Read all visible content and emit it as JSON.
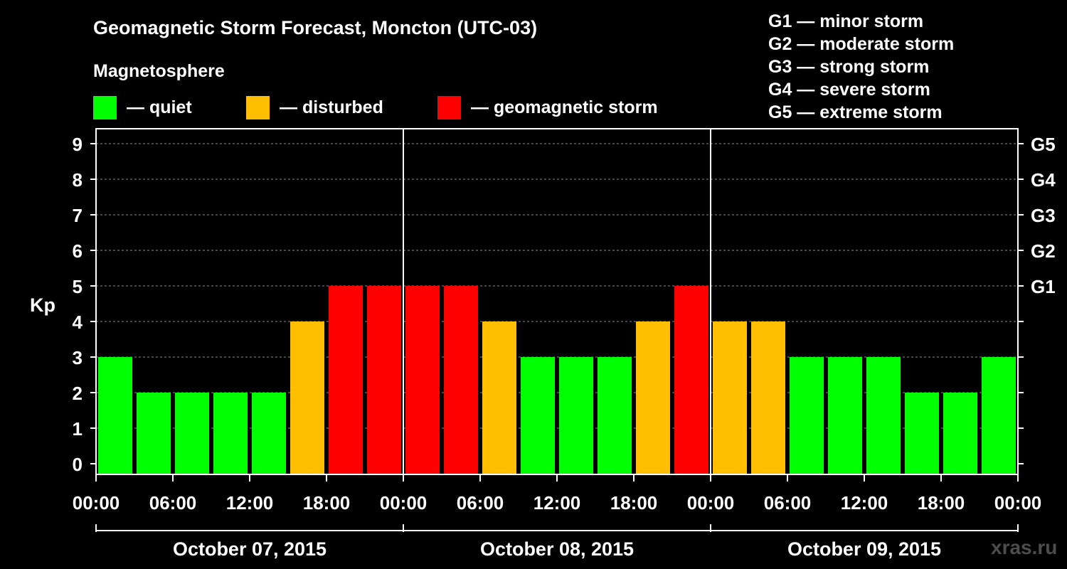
{
  "title": "Geomagnetic Storm Forecast, Moncton (UTC-03)",
  "legend": {
    "heading": "Magnetosphere",
    "items": [
      {
        "label": "— quiet",
        "color": "#00ff00"
      },
      {
        "label": "— disturbed",
        "color": "#ffbf00"
      },
      {
        "label": "— geomagnetic storm",
        "color": "#ff0000"
      }
    ]
  },
  "storm_levels": [
    "G1 — minor storm",
    "G2 — moderate storm",
    "G3 — strong storm",
    "G4 — severe storm",
    "G5 — extreme storm"
  ],
  "watermark": "xras.ru",
  "chart_data": {
    "type": "bar",
    "ylabel": "Kp",
    "ylim": [
      0,
      9
    ],
    "y_ticks": [
      0,
      1,
      2,
      3,
      4,
      5,
      6,
      7,
      8,
      9
    ],
    "right_axis_labels": [
      {
        "kp": 5,
        "label": "G1"
      },
      {
        "kp": 6,
        "label": "G2"
      },
      {
        "kp": 7,
        "label": "G3"
      },
      {
        "kp": 8,
        "label": "G4"
      },
      {
        "kp": 9,
        "label": "G5"
      }
    ],
    "x_tick_labels": [
      "00:00",
      "06:00",
      "12:00",
      "18:00",
      "00:00",
      "06:00",
      "12:00",
      "18:00",
      "00:00",
      "06:00",
      "12:00",
      "18:00",
      "00:00"
    ],
    "days": [
      "October 07, 2015",
      "October 08, 2015",
      "October 09, 2015"
    ],
    "interval_hours": 3,
    "values": [
      3,
      2,
      2,
      2,
      2,
      4,
      5,
      5,
      5,
      5,
      4,
      3,
      3,
      3,
      4,
      5,
      4,
      4,
      3,
      3,
      3,
      2,
      2,
      3
    ],
    "color_thresholds": {
      "quiet_max": 3,
      "disturbed_max": 4
    },
    "grid": "dashed horizontal"
  }
}
